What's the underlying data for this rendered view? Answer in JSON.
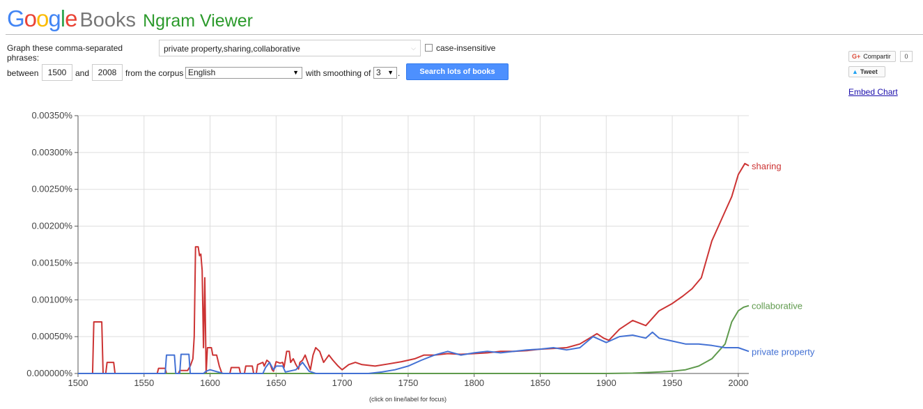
{
  "header": {
    "logo_google": "Google",
    "logo_books": "Books",
    "logo_ngram": "Ngram Viewer",
    "google_letters": [
      {
        "ch": "G",
        "color": "#4285f4"
      },
      {
        "ch": "o",
        "color": "#ea4335"
      },
      {
        "ch": "o",
        "color": "#fbbc05"
      },
      {
        "ch": "g",
        "color": "#4285f4"
      },
      {
        "ch": "l",
        "color": "#34a853"
      },
      {
        "ch": "e",
        "color": "#ea4335"
      }
    ]
  },
  "form": {
    "phrases_label_1": "Graph these comma-separated",
    "phrases_label_2": "phrases:",
    "phrases_value": "private property,sharing,collaborative",
    "case_insensitive_label": "case-insensitive",
    "between_label": "between",
    "start_year": "1500",
    "and_label": "and",
    "end_year": "2008",
    "corpus_label": "from the corpus",
    "corpus_value": "English",
    "smoothing_label": "with smoothing of",
    "smoothing_value": "3",
    "smoothing_suffix": ".",
    "search_button": "Search lots of books"
  },
  "social": {
    "share_gplus": "G+",
    "share_label": "Compartir",
    "share_count": "0",
    "tweet_label": "Tweet",
    "embed_label": "Embed Chart"
  },
  "chart_hint": "(click on line/label for focus)",
  "chart_data": {
    "type": "line",
    "x_range": [
      1500,
      2008
    ],
    "y_range": [
      0,
      0.0035
    ],
    "y_ticks": [
      "0.000000%",
      "0.00050%",
      "0.00100%",
      "0.00150%",
      "0.00200%",
      "0.00250%",
      "0.00300%",
      "0.00350%"
    ],
    "x_ticks": [
      "1500",
      "1550",
      "1600",
      "1650",
      "1700",
      "1750",
      "1800",
      "1850",
      "1900",
      "1950",
      "2000"
    ],
    "grid": true,
    "series": [
      {
        "name": "sharing",
        "color": "#cc3333",
        "points": [
          [
            1500,
            0
          ],
          [
            1511,
            0
          ],
          [
            1512,
            0.0007
          ],
          [
            1518,
            0.0007
          ],
          [
            1519,
            0
          ],
          [
            1521,
            0
          ],
          [
            1522,
            0.00015
          ],
          [
            1527,
            0.00015
          ],
          [
            1528,
            0
          ],
          [
            1560,
            0
          ],
          [
            1561,
            7e-05
          ],
          [
            1566,
            7e-05
          ],
          [
            1567,
            0
          ],
          [
            1576,
            0
          ],
          [
            1577,
            4e-05
          ],
          [
            1583,
            4e-05
          ],
          [
            1585,
            0.0001
          ],
          [
            1587,
            0.0002
          ],
          [
            1588,
            0.0005
          ],
          [
            1589,
            0.00172
          ],
          [
            1591,
            0.00172
          ],
          [
            1592,
            0.0016
          ],
          [
            1593,
            0.00162
          ],
          [
            1594,
            0.0014
          ],
          [
            1595,
            0.00035
          ],
          [
            1596,
            0.0013
          ],
          [
            1597,
            0
          ],
          [
            1598,
            0.00035
          ],
          [
            1601,
            0.00035
          ],
          [
            1602,
            0.00025
          ],
          [
            1605,
            0.00025
          ],
          [
            1607,
            0.0001
          ],
          [
            1609,
            0
          ],
          [
            1615,
            0
          ],
          [
            1616,
            8e-05
          ],
          [
            1622,
            8e-05
          ],
          [
            1623,
            0
          ],
          [
            1626,
            0
          ],
          [
            1627,
            0.0001
          ],
          [
            1632,
            0.0001
          ],
          [
            1633,
            0
          ],
          [
            1635,
            0
          ],
          [
            1636,
            0.00012
          ],
          [
            1640,
            0.00015
          ],
          [
            1641,
            0.0001
          ],
          [
            1643,
            0.00018
          ],
          [
            1645,
            0.00015
          ],
          [
            1647,
            5e-05
          ],
          [
            1648,
            3e-05
          ],
          [
            1650,
            0.00016
          ],
          [
            1653,
            0.00014
          ],
          [
            1655,
            0.00015
          ],
          [
            1656,
            8e-05
          ],
          [
            1658,
            0.0003
          ],
          [
            1660,
            0.0003
          ],
          [
            1661,
            0.00015
          ],
          [
            1663,
            0.0002
          ],
          [
            1665,
            0.00012
          ],
          [
            1667,
            6e-05
          ],
          [
            1668,
            0.00015
          ],
          [
            1670,
            0.00018
          ],
          [
            1672,
            0.00025
          ],
          [
            1674,
            0.00015
          ],
          [
            1676,
            5e-05
          ],
          [
            1678,
            0.00025
          ],
          [
            1680,
            0.00035
          ],
          [
            1683,
            0.0003
          ],
          [
            1686,
            0.00015
          ],
          [
            1690,
            0.00025
          ],
          [
            1693,
            0.00018
          ],
          [
            1697,
            0.0001
          ],
          [
            1700,
            5e-05
          ],
          [
            1705,
            0.00012
          ],
          [
            1710,
            0.00015
          ],
          [
            1715,
            0.00012
          ],
          [
            1725,
            0.0001
          ],
          [
            1735,
            0.00013
          ],
          [
            1745,
            0.00016
          ],
          [
            1755,
            0.0002
          ],
          [
            1762,
            0.00025
          ],
          [
            1770,
            0.00025
          ],
          [
            1780,
            0.00027
          ],
          [
            1790,
            0.00026
          ],
          [
            1800,
            0.00027
          ],
          [
            1810,
            0.00028
          ],
          [
            1820,
            0.0003
          ],
          [
            1830,
            0.0003
          ],
          [
            1840,
            0.00031
          ],
          [
            1850,
            0.00033
          ],
          [
            1860,
            0.00034
          ],
          [
            1870,
            0.00035
          ],
          [
            1880,
            0.0004
          ],
          [
            1893,
            0.00054
          ],
          [
            1898,
            0.00048
          ],
          [
            1902,
            0.00045
          ],
          [
            1910,
            0.0006
          ],
          [
            1920,
            0.00072
          ],
          [
            1930,
            0.00065
          ],
          [
            1940,
            0.00085
          ],
          [
            1950,
            0.00095
          ],
          [
            1958,
            0.00105
          ],
          [
            1965,
            0.00115
          ],
          [
            1972,
            0.0013
          ],
          [
            1980,
            0.0018
          ],
          [
            1985,
            0.002
          ],
          [
            1990,
            0.0022
          ],
          [
            1995,
            0.0024
          ],
          [
            2000,
            0.0027
          ],
          [
            2005,
            0.00285
          ],
          [
            2008,
            0.00282
          ]
        ]
      },
      {
        "name": "collaborative",
        "color": "#5f9a4d",
        "points": [
          [
            1500,
            0
          ],
          [
            1900,
            0
          ],
          [
            1920,
            5e-06
          ],
          [
            1940,
            2e-05
          ],
          [
            1950,
            3e-05
          ],
          [
            1960,
            5e-05
          ],
          [
            1970,
            0.0001
          ],
          [
            1980,
            0.0002
          ],
          [
            1990,
            0.0004
          ],
          [
            1995,
            0.0007
          ],
          [
            2000,
            0.00085
          ],
          [
            2004,
            0.0009
          ],
          [
            2008,
            0.00092
          ]
        ]
      },
      {
        "name": "private property",
        "color": "#4371d4",
        "points": [
          [
            1500,
            0
          ],
          [
            1566,
            0
          ],
          [
            1567,
            0.00025
          ],
          [
            1573,
            0.00025
          ],
          [
            1574,
            0
          ],
          [
            1577,
            0
          ],
          [
            1578,
            0.00026
          ],
          [
            1584,
            0.00026
          ],
          [
            1585,
            0
          ],
          [
            1595,
            0
          ],
          [
            1597,
            3e-05
          ],
          [
            1600,
            5e-05
          ],
          [
            1610,
            0
          ],
          [
            1640,
            0
          ],
          [
            1642,
            8e-05
          ],
          [
            1645,
            0.00015
          ],
          [
            1648,
            5e-05
          ],
          [
            1650,
            0.0001
          ],
          [
            1655,
            0.0001
          ],
          [
            1657,
            2e-05
          ],
          [
            1665,
            5e-05
          ],
          [
            1670,
            0.00015
          ],
          [
            1675,
            3e-05
          ],
          [
            1680,
            0
          ],
          [
            1720,
            0
          ],
          [
            1730,
            2e-05
          ],
          [
            1740,
            5e-05
          ],
          [
            1750,
            0.0001
          ],
          [
            1760,
            0.00018
          ],
          [
            1770,
            0.00025
          ],
          [
            1780,
            0.0003
          ],
          [
            1790,
            0.00025
          ],
          [
            1800,
            0.00028
          ],
          [
            1810,
            0.0003
          ],
          [
            1820,
            0.00028
          ],
          [
            1830,
            0.0003
          ],
          [
            1840,
            0.00032
          ],
          [
            1850,
            0.00033
          ],
          [
            1860,
            0.00035
          ],
          [
            1870,
            0.00032
          ],
          [
            1880,
            0.00035
          ],
          [
            1890,
            0.0005
          ],
          [
            1900,
            0.00042
          ],
          [
            1910,
            0.0005
          ],
          [
            1920,
            0.00052
          ],
          [
            1930,
            0.00048
          ],
          [
            1935,
            0.00056
          ],
          [
            1940,
            0.00048
          ],
          [
            1950,
            0.00044
          ],
          [
            1960,
            0.0004
          ],
          [
            1970,
            0.0004
          ],
          [
            1980,
            0.00038
          ],
          [
            1990,
            0.00035
          ],
          [
            2000,
            0.00035
          ],
          [
            2008,
            0.0003
          ]
        ]
      }
    ]
  }
}
